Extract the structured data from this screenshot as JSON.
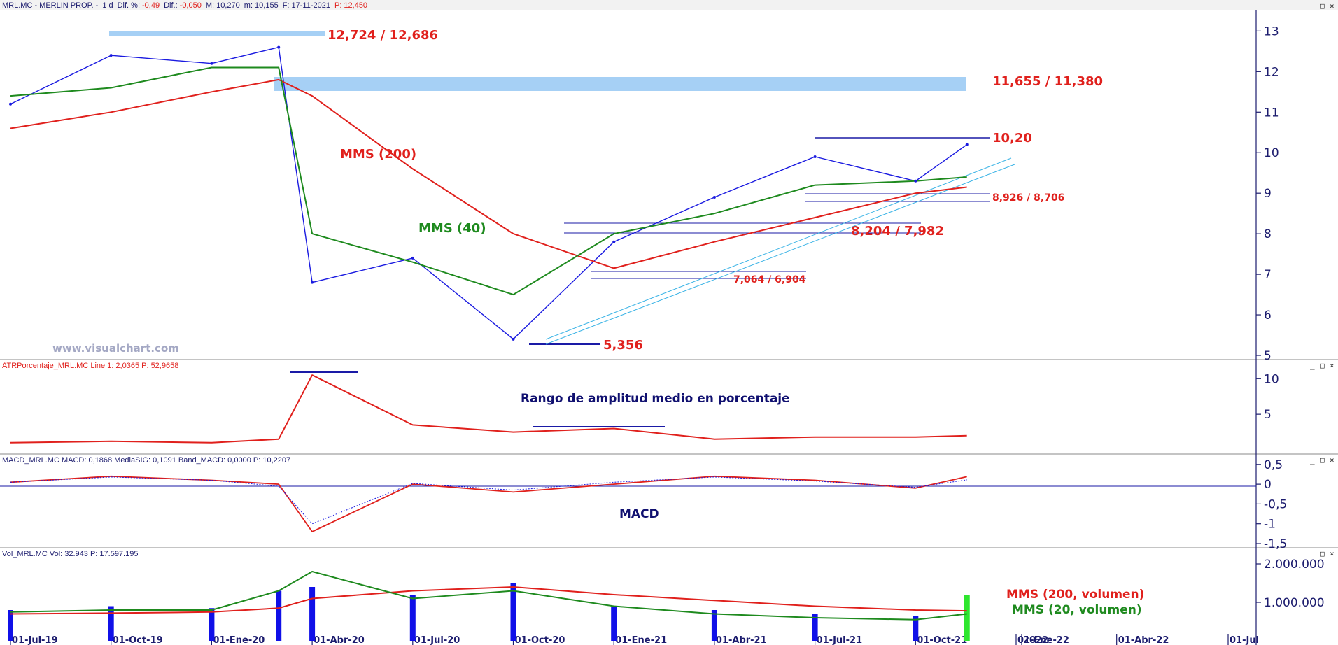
{
  "window": {
    "title_symbol": "MRL.MC - MERLIN PROP. -",
    "title_period": "1 d",
    "dif_pct_label": "Dif. %:",
    "dif_pct_value": "-0,49",
    "dif_label": "Dif.:",
    "dif_value": "-0,050",
    "max_label": "M: 10,270",
    "min_label": "m: 10,155",
    "date_label": "F: 17-11-2021",
    "price_label": "P:",
    "price_value": "12,450",
    "controls": [
      "_",
      "□",
      "×"
    ]
  },
  "watermark": "www.visualchart.com",
  "colors": {
    "price": "#1a1ae0",
    "mms200": "#e0201c",
    "mms40": "#1e8a1e",
    "band": "#a6d0f5",
    "level": "#1a1aa6",
    "trend": "#3cb4e6",
    "axis": "#1c1c6e",
    "volume": "#1010e8",
    "volume_last": "#2ee62e"
  },
  "x_axis_labels": [
    "01-Jul-19",
    "01-Oct-19",
    "01-Ene-20",
    "01-Abr-20",
    "01-Jul-20",
    "01-Oct-20",
    "01-Ene-21",
    "01-Abr-21",
    "01-Jul-21",
    "01-Oct-21",
    "2022",
    "01-Ene-22",
    "01-Abr-22",
    "01-Jul"
  ],
  "chart_data": [
    {
      "type": "line",
      "panel": "price",
      "y_ticks": [
        "13",
        "12",
        "11",
        "10",
        "9",
        "8",
        "7",
        "6",
        "5"
      ],
      "ylim": [
        5,
        13.3
      ],
      "x": [
        "01-Jul-19",
        "01-Oct-19",
        "01-Ene-20",
        "01-Mar-20",
        "01-Abr-20",
        "01-Jul-20",
        "01-Oct-20",
        "01-Ene-21",
        "01-Abr-21",
        "01-Jul-21",
        "01-Oct-21",
        "17-11-2021"
      ],
      "series": [
        {
          "name": "MMS (200)",
          "values": [
            10.6,
            11.0,
            11.5,
            11.8,
            11.4,
            9.6,
            8.0,
            7.15,
            7.8,
            8.4,
            9.0,
            9.15
          ]
        },
        {
          "name": "MMS (40)",
          "values": [
            11.4,
            11.6,
            12.1,
            12.1,
            8.0,
            7.3,
            6.5,
            8.0,
            8.5,
            9.2,
            9.3,
            9.4
          ]
        },
        {
          "values": [
            11.2,
            12.4,
            12.2,
            12.6,
            6.8,
            7.4,
            5.4,
            7.8,
            8.9,
            9.9,
            9.3,
            10.2
          ]
        }
      ],
      "annotations": {
        "top": "12,724 / 12,686",
        "resistance": "11,655 / 11,380",
        "last_high": "10,20",
        "support_a": "8,926 / 8,706",
        "support_b": "8,204 / 7,982",
        "support_c": "7,064 / 6,904",
        "low": "5,356",
        "mms200": "MMS (200)",
        "mms40": "MMS (40)"
      }
    },
    {
      "type": "line",
      "panel": "atr",
      "header": "ATRPorcentaje_MRL.MC Line 1: 2,0365 P: 52,9658",
      "label": "Rango de amplitud medio en porcentaje",
      "y_ticks": [
        "10",
        "5"
      ],
      "ylim": [
        0,
        11.5
      ],
      "x": [
        "01-Jul-19",
        "01-Oct-19",
        "01-Ene-20",
        "01-Mar-20",
        "01-Abr-20",
        "01-Jul-20",
        "01-Oct-20",
        "01-Ene-21",
        "01-Abr-21",
        "01-Jul-21",
        "01-Oct-21",
        "17-11-2021"
      ],
      "values": [
        1.0,
        1.2,
        1.0,
        1.5,
        10.5,
        3.5,
        2.5,
        3.0,
        1.5,
        1.8,
        1.8,
        2.0
      ]
    },
    {
      "type": "line",
      "panel": "macd",
      "header": "MACD_MRL.MC MACD: 0,1868 MediaSIG: 0,1091 Band_MACD: 0,0000 P: 10,2207",
      "label": "MACD",
      "y_ticks": [
        "0,5",
        "0",
        "-0,5",
        "-1",
        "-1,5"
      ],
      "ylim": [
        -1.5,
        0.55
      ],
      "x": [
        "01-Jul-19",
        "01-Oct-19",
        "01-Ene-20",
        "01-Mar-20",
        "01-Abr-20",
        "01-Jul-20",
        "01-Oct-20",
        "01-Ene-21",
        "01-Abr-21",
        "01-Jul-21",
        "01-Oct-21",
        "17-11-2021"
      ],
      "series": [
        {
          "name": "MACD",
          "values": [
            0.05,
            0.2,
            0.1,
            0.0,
            -1.2,
            0.0,
            -0.2,
            0.0,
            0.2,
            0.1,
            -0.1,
            0.19
          ]
        },
        {
          "name": "MediaSIG",
          "values": [
            0.05,
            0.18,
            0.1,
            -0.05,
            -1.0,
            0.02,
            -0.15,
            0.05,
            0.18,
            0.08,
            -0.08,
            0.11
          ]
        }
      ]
    },
    {
      "type": "bar",
      "panel": "volume",
      "header": "Vol_MRL.MC Vol: 32.943 P: 17.597.195",
      "y_ticks": [
        "2.000.000",
        "1.000.000"
      ],
      "ylim": [
        0,
        2200000
      ],
      "x": [
        "01-Jul-19",
        "01-Oct-19",
        "01-Ene-20",
        "01-Mar-20",
        "01-Abr-20",
        "01-Jul-20",
        "01-Oct-20",
        "01-Ene-21",
        "01-Abr-21",
        "01-Jul-21",
        "01-Oct-21",
        "17-11-2021"
      ],
      "values": [
        800000,
        900000,
        850000,
        1300000,
        1400000,
        1200000,
        1500000,
        900000,
        800000,
        700000,
        650000,
        1200000
      ],
      "series_labels": [
        "MMS (200, volumen)",
        "MMS (20, volumen)"
      ],
      "mms200_values": [
        700000,
        720000,
        750000,
        850000,
        1100000,
        1300000,
        1400000,
        1200000,
        1050000,
        900000,
        800000,
        780000
      ],
      "mms20_values": [
        750000,
        800000,
        800000,
        1300000,
        1800000,
        1100000,
        1300000,
        900000,
        700000,
        600000,
        550000,
        700000
      ]
    }
  ]
}
